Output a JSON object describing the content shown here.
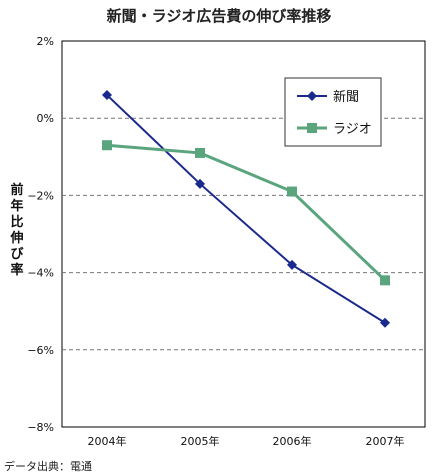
{
  "chart_data": {
    "type": "line",
    "title": "新聞・ラジオ広告費の伸び率推移",
    "ylabel": "前年比伸び率",
    "categories": [
      "2004年",
      "2005年",
      "2006年",
      "2007年"
    ],
    "yticks": [
      "2%",
      "0%",
      "−2%",
      "−4%",
      "−6%",
      "−8%"
    ],
    "ylim": [
      -8,
      2
    ],
    "grid": true,
    "legend_position": "top-right",
    "series": [
      {
        "name": "新聞",
        "color": "#1a2a8c",
        "marker": "diamond",
        "values": [
          0.6,
          -1.7,
          -3.8,
          -5.3
        ]
      },
      {
        "name": "ラジオ",
        "color": "#5aa57e",
        "marker": "square",
        "values": [
          -0.7,
          -0.9,
          -1.9,
          -4.2
        ]
      }
    ]
  },
  "source": "データ出典：電通"
}
